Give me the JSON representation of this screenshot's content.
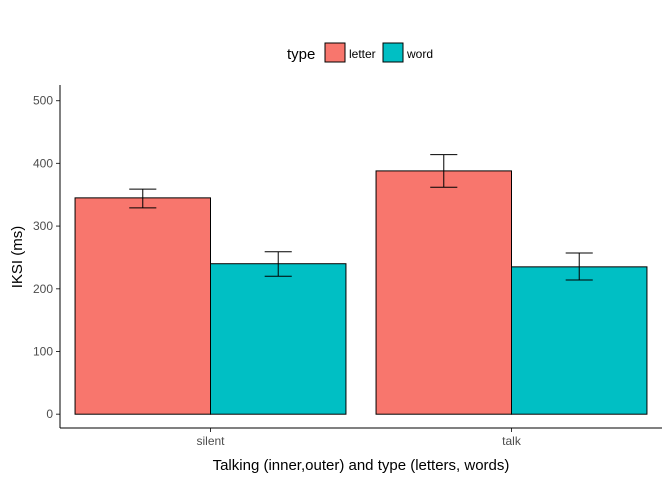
{
  "chart_data": {
    "type": "bar",
    "categories": [
      "silent",
      "talk"
    ],
    "series": [
      {
        "name": "letter",
        "color": "#F8766D",
        "values": [
          345,
          388
        ],
        "err_low": [
          329,
          362
        ],
        "err_high": [
          359,
          414
        ]
      },
      {
        "name": "word",
        "color": "#00BFC4",
        "values": [
          240,
          235
        ],
        "err_low": [
          220,
          214
        ],
        "err_high": [
          259,
          257
        ]
      }
    ],
    "xlabel": "Talking (inner,outer) and type (letters, words)",
    "ylabel": "IKSI (ms)",
    "ylim": [
      -22,
      525
    ],
    "yticks": [
      0,
      100,
      200,
      300,
      400,
      500
    ],
    "legend": {
      "title": "type",
      "position": "top"
    },
    "grid": false
  }
}
